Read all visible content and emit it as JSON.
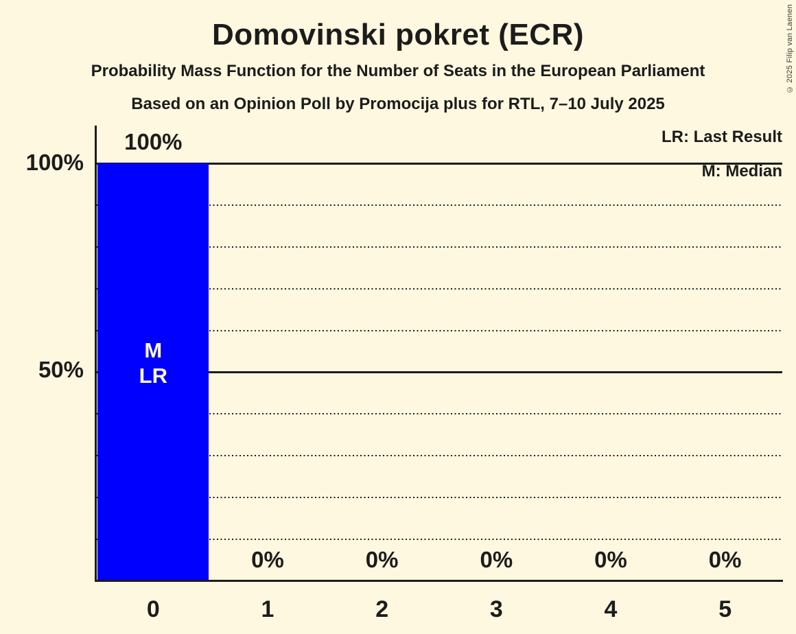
{
  "chart_data": {
    "type": "bar",
    "title": "Domovinski pokret (ECR)",
    "subtitle": "Probability Mass Function for the Number of Seats in the European Parliament",
    "source_line": "Based on an Opinion Poll by Promocija plus for RTL, 7–10 July 2025",
    "copyright": "© 2025 Filip van Laenen",
    "legend": [
      {
        "label": "LR: Last Result"
      },
      {
        "label": "M: Median"
      }
    ],
    "categories": [
      "0",
      "1",
      "2",
      "3",
      "4",
      "5"
    ],
    "values": [
      100,
      0,
      0,
      0,
      0,
      0
    ],
    "value_labels": [
      "100%",
      "0%",
      "0%",
      "0%",
      "0%",
      "0%"
    ],
    "bar_annotations": [
      {
        "bar_index": 0,
        "lines": [
          "M",
          "LR"
        ],
        "meaning": "Median and Last Result at 0 seats"
      }
    ],
    "xlabel": "",
    "ylabel": "",
    "ylim": [
      0,
      100
    ],
    "yticks": [
      {
        "value": 100,
        "label": "100%"
      },
      {
        "value": 50,
        "label": "50%"
      }
    ],
    "solid_gridlines": [
      100,
      50
    ],
    "dotted_gridlines": [
      90,
      80,
      70,
      60,
      40,
      30,
      20,
      10
    ],
    "grid": true,
    "legend_position": "top-right",
    "colors": {
      "bar": "#0000ff",
      "background": "#fdf8df",
      "text": "#1c1c1c",
      "annotation_text": "#fdf8df"
    }
  }
}
